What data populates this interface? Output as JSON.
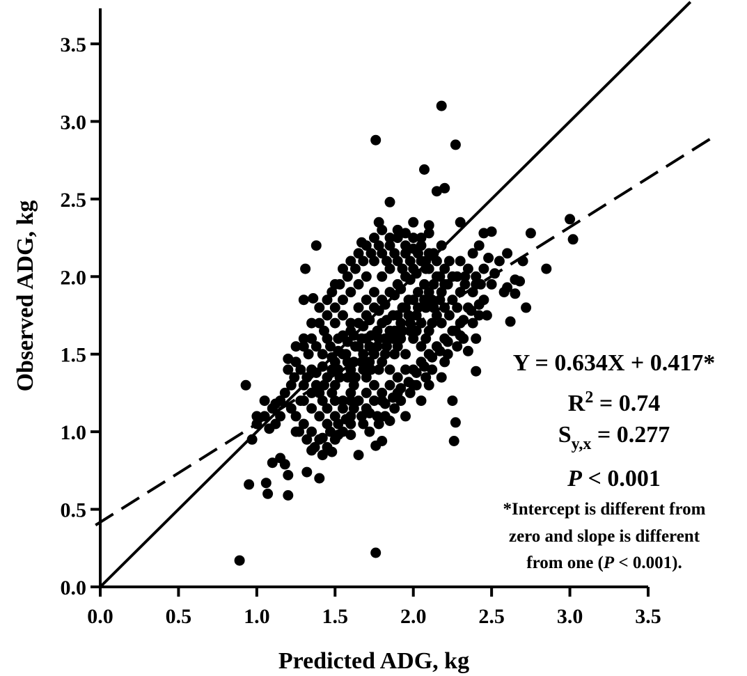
{
  "chart_data": {
    "type": "scatter",
    "xlabel": "Predicted ADG, kg",
    "ylabel": "Observed ADG, kg",
    "xlim": [
      0,
      3.5
    ],
    "ylim": [
      0,
      3.5
    ],
    "x_ticks": [
      "0.0",
      "0.5",
      "1.0",
      "1.5",
      "2.0",
      "2.5",
      "3.0",
      "3.5"
    ],
    "y_ticks": [
      "0.0",
      "0.5",
      "1.0",
      "1.5",
      "2.0",
      "2.5",
      "3.0",
      "3.5"
    ],
    "grid": false,
    "lines": [
      {
        "style": "solid",
        "slope": 1,
        "intercept": 0
      },
      {
        "style": "dashed",
        "slope": 0.634,
        "intercept": 0.417
      }
    ],
    "points": [
      [
        0.89,
        0.17
      ],
      [
        1.76,
        0.22
      ],
      [
        0.95,
        0.66
      ],
      [
        1.07,
        0.6
      ],
      [
        1.2,
        0.59
      ],
      [
        1.06,
        0.67
      ],
      [
        1.32,
        0.74
      ],
      [
        1.4,
        0.7
      ],
      [
        0.93,
        1.3
      ],
      [
        1.0,
        1.1
      ],
      [
        1.05,
        1.2
      ],
      [
        0.97,
        0.95
      ],
      [
        1.1,
        0.8
      ],
      [
        1.15,
        0.83
      ],
      [
        1.2,
        0.72
      ],
      [
        1.18,
        0.79
      ],
      [
        1.08,
        1.02
      ],
      [
        1.12,
        1.18
      ],
      [
        1.2,
        1.47
      ],
      [
        1.24,
        1.35
      ],
      [
        1.3,
        1.85
      ],
      [
        1.31,
        2.05
      ],
      [
        1.38,
        2.2
      ],
      [
        1.36,
        1.86
      ],
      [
        1.25,
        1.0
      ],
      [
        1.35,
        0.88
      ],
      [
        1.42,
        0.96
      ],
      [
        1.48,
        0.87
      ],
      [
        1.52,
        0.98
      ],
      [
        1.6,
        1.05
      ],
      [
        1.65,
        0.85
      ],
      [
        1.76,
        0.91
      ],
      [
        1.8,
        0.94
      ],
      [
        1.85,
        1.07
      ],
      [
        1.95,
        1.1
      ],
      [
        2.05,
        1.2
      ],
      [
        2.1,
        1.3
      ],
      [
        2.2,
        1.45
      ],
      [
        2.25,
        1.2
      ],
      [
        2.27,
        1.06
      ],
      [
        2.26,
        0.94
      ],
      [
        2.4,
        1.39
      ],
      [
        2.4,
        1.6
      ],
      [
        2.35,
        1.52
      ],
      [
        2.3,
        1.62
      ],
      [
        1.76,
        2.88
      ],
      [
        2.18,
        3.1
      ],
      [
        2.27,
        2.85
      ],
      [
        2.07,
        2.69
      ],
      [
        2.15,
        2.55
      ],
      [
        2.2,
        2.57
      ],
      [
        1.85,
        2.48
      ],
      [
        1.67,
        2.22
      ],
      [
        1.78,
        2.35
      ],
      [
        2.0,
        2.35
      ],
      [
        2.1,
        2.28
      ],
      [
        2.1,
        2.33
      ],
      [
        2.3,
        2.35
      ],
      [
        2.45,
        2.28
      ],
      [
        2.5,
        2.29
      ],
      [
        2.55,
        2.1
      ],
      [
        2.6,
        1.93
      ],
      [
        2.65,
        1.89
      ],
      [
        2.7,
        2.1
      ],
      [
        2.72,
        1.8
      ],
      [
        2.75,
        2.28
      ],
      [
        2.85,
        2.05
      ],
      [
        3.0,
        2.37
      ],
      [
        3.02,
        2.24
      ],
      [
        2.6,
        2.15
      ],
      [
        2.62,
        1.71
      ],
      [
        2.47,
        1.75
      ],
      [
        2.52,
        2.02
      ],
      [
        2.65,
        1.98
      ],
      [
        2.68,
        1.97
      ],
      [
        2.58,
        1.9
      ],
      [
        1.5,
        1.45
      ],
      [
        1.55,
        1.5
      ],
      [
        1.6,
        1.4
      ],
      [
        1.65,
        1.55
      ],
      [
        1.7,
        1.6
      ],
      [
        1.75,
        1.5
      ],
      [
        1.8,
        1.7
      ],
      [
        1.85,
        1.65
      ],
      [
        1.9,
        1.75
      ],
      [
        1.95,
        1.8
      ],
      [
        2.0,
        1.85
      ],
      [
        2.05,
        1.7
      ],
      [
        2.1,
        1.9
      ],
      [
        1.45,
        1.35
      ],
      [
        1.4,
        1.25
      ],
      [
        1.5,
        1.3
      ],
      [
        1.55,
        1.2
      ],
      [
        1.6,
        1.25
      ],
      [
        1.7,
        1.35
      ],
      [
        1.75,
        1.3
      ],
      [
        1.8,
        1.45
      ],
      [
        1.85,
        1.4
      ],
      [
        1.9,
        1.55
      ],
      [
        1.95,
        1.5
      ],
      [
        2.0,
        1.6
      ],
      [
        2.05,
        1.55
      ],
      [
        2.1,
        1.65
      ],
      [
        2.15,
        1.75
      ],
      [
        2.2,
        1.8
      ],
      [
        2.25,
        1.85
      ],
      [
        1.6,
        1.7
      ],
      [
        1.65,
        1.8
      ],
      [
        1.7,
        1.85
      ],
      [
        1.75,
        1.9
      ],
      [
        1.8,
        2.0
      ],
      [
        1.85,
        2.05
      ],
      [
        1.9,
        2.1
      ],
      [
        1.95,
        2.15
      ],
      [
        1.45,
        1.6
      ],
      [
        1.5,
        1.7
      ],
      [
        1.55,
        1.75
      ],
      [
        1.42,
        1.5
      ],
      [
        1.35,
        1.4
      ],
      [
        1.3,
        1.3
      ],
      [
        1.28,
        1.2
      ],
      [
        1.35,
        1.15
      ],
      [
        1.4,
        1.1
      ],
      [
        1.45,
        1.05
      ],
      [
        1.5,
        1.1
      ],
      [
        1.55,
        1.15
      ],
      [
        1.6,
        1.1
      ],
      [
        1.65,
        1.2
      ],
      [
        1.7,
        1.25
      ],
      [
        1.75,
        1.2
      ],
      [
        1.8,
        1.25
      ],
      [
        1.85,
        1.3
      ],
      [
        1.9,
        1.35
      ],
      [
        1.95,
        1.4
      ],
      [
        2.0,
        1.4
      ],
      [
        2.05,
        1.45
      ],
      [
        2.1,
        1.5
      ],
      [
        2.15,
        1.55
      ],
      [
        2.2,
        1.6
      ],
      [
        2.25,
        1.65
      ],
      [
        2.3,
        1.7
      ],
      [
        2.35,
        1.8
      ],
      [
        2.3,
        1.9
      ],
      [
        2.25,
        2.0
      ],
      [
        2.2,
        2.05
      ],
      [
        2.15,
        2.1
      ],
      [
        2.1,
        2.15
      ],
      [
        2.05,
        2.2
      ],
      [
        2.0,
        2.25
      ],
      [
        1.95,
        2.2
      ],
      [
        1.9,
        2.25
      ],
      [
        1.85,
        2.2
      ],
      [
        1.8,
        2.15
      ],
      [
        1.75,
        2.1
      ],
      [
        1.7,
        2.0
      ],
      [
        1.65,
        1.95
      ],
      [
        1.6,
        1.9
      ],
      [
        1.55,
        1.85
      ],
      [
        1.5,
        1.8
      ],
      [
        1.45,
        1.75
      ],
      [
        1.4,
        1.7
      ],
      [
        1.35,
        1.6
      ],
      [
        1.3,
        1.55
      ],
      [
        1.25,
        1.45
      ],
      [
        1.22,
        1.3
      ],
      [
        1.18,
        1.25
      ],
      [
        1.15,
        1.1
      ],
      [
        1.12,
        1.05
      ],
      [
        1.25,
        1.1
      ],
      [
        1.3,
        1.05
      ],
      [
        1.35,
        1.0
      ],
      [
        1.4,
        0.95
      ],
      [
        1.45,
        0.9
      ],
      [
        1.5,
        0.95
      ],
      [
        1.55,
        1.0
      ],
      [
        1.6,
        0.98
      ],
      [
        1.68,
        1.05
      ],
      [
        1.72,
        1.0
      ],
      [
        1.78,
        1.05
      ],
      [
        1.82,
        1.1
      ],
      [
        1.88,
        1.15
      ],
      [
        1.92,
        1.2
      ],
      [
        1.98,
        1.25
      ],
      [
        2.02,
        1.3
      ],
      [
        2.08,
        1.35
      ],
      [
        2.12,
        1.4
      ],
      [
        2.18,
        1.35
      ],
      [
        2.22,
        1.5
      ],
      [
        2.28,
        1.55
      ],
      [
        2.32,
        1.6
      ],
      [
        2.38,
        1.7
      ],
      [
        2.42,
        1.75
      ],
      [
        2.45,
        1.85
      ],
      [
        2.4,
        1.95
      ],
      [
        2.35,
        2.05
      ],
      [
        2.3,
        2.1
      ],
      [
        2.38,
        2.15
      ],
      [
        2.42,
        2.2
      ],
      [
        2.45,
        2.05
      ],
      [
        2.5,
        1.95
      ],
      [
        2.48,
        2.12
      ],
      [
        2.4,
        2.0
      ],
      [
        2.33,
        1.95
      ],
      [
        2.28,
        1.8
      ],
      [
        1.62,
        1.62
      ],
      [
        1.68,
        1.68
      ],
      [
        1.72,
        1.72
      ],
      [
        1.78,
        1.78
      ],
      [
        1.82,
        1.82
      ],
      [
        1.88,
        1.88
      ],
      [
        1.92,
        1.92
      ],
      [
        1.98,
        1.98
      ],
      [
        2.02,
        2.02
      ],
      [
        2.08,
        2.05
      ],
      [
        1.58,
        1.58
      ],
      [
        1.52,
        1.52
      ],
      [
        1.48,
        1.48
      ],
      [
        1.42,
        1.42
      ],
      [
        1.38,
        1.38
      ],
      [
        1.32,
        1.35
      ],
      [
        1.62,
        1.45
      ],
      [
        1.68,
        1.5
      ],
      [
        1.72,
        1.55
      ],
      [
        1.78,
        1.6
      ],
      [
        1.82,
        1.6
      ],
      [
        1.88,
        1.65
      ],
      [
        1.92,
        1.7
      ],
      [
        1.98,
        1.7
      ],
      [
        2.02,
        1.75
      ],
      [
        2.08,
        1.8
      ],
      [
        2.12,
        1.85
      ],
      [
        2.18,
        1.9
      ],
      [
        2.22,
        1.95
      ],
      [
        1.58,
        1.35
      ],
      [
        1.52,
        1.4
      ],
      [
        1.48,
        1.25
      ],
      [
        1.42,
        1.2
      ],
      [
        1.38,
        1.3
      ],
      [
        1.62,
        1.3
      ],
      [
        1.68,
        1.4
      ],
      [
        1.72,
        1.45
      ],
      [
        1.78,
        1.4
      ],
      [
        1.82,
        1.5
      ],
      [
        1.88,
        1.5
      ],
      [
        1.92,
        1.6
      ],
      [
        1.98,
        1.65
      ],
      [
        2.02,
        1.65
      ],
      [
        2.08,
        1.6
      ],
      [
        2.12,
        1.7
      ],
      [
        2.18,
        1.7
      ],
      [
        1.55,
        1.62
      ],
      [
        1.6,
        1.65
      ],
      [
        1.65,
        1.7
      ],
      [
        1.7,
        1.75
      ],
      [
        1.75,
        1.8
      ],
      [
        1.8,
        1.85
      ],
      [
        1.85,
        1.9
      ],
      [
        1.9,
        1.95
      ],
      [
        1.95,
        2.0
      ],
      [
        2.0,
        2.05
      ],
      [
        2.05,
        2.1
      ],
      [
        2.1,
        2.05
      ],
      [
        2.15,
        2.0
      ],
      [
        2.2,
        1.95
      ],
      [
        1.47,
        1.55
      ],
      [
        1.52,
        1.6
      ],
      [
        1.57,
        1.5
      ],
      [
        1.63,
        1.55
      ],
      [
        1.67,
        1.45
      ],
      [
        1.73,
        1.62
      ],
      [
        1.77,
        1.65
      ],
      [
        1.83,
        1.72
      ],
      [
        1.87,
        1.75
      ],
      [
        1.93,
        1.8
      ],
      [
        1.97,
        1.85
      ],
      [
        2.03,
        1.9
      ],
      [
        2.07,
        1.95
      ],
      [
        2.13,
        1.8
      ],
      [
        2.17,
        1.85
      ],
      [
        2.23,
        1.75
      ],
      [
        1.43,
        1.3
      ],
      [
        1.48,
        1.4
      ],
      [
        1.53,
        1.35
      ],
      [
        1.58,
        1.45
      ],
      [
        1.63,
        1.35
      ],
      [
        1.67,
        1.6
      ],
      [
        1.73,
        1.4
      ],
      [
        1.77,
        1.55
      ],
      [
        1.83,
        1.55
      ],
      [
        1.87,
        1.6
      ],
      [
        1.93,
        1.65
      ],
      [
        1.97,
        1.75
      ],
      [
        2.03,
        1.8
      ],
      [
        2.07,
        1.85
      ],
      [
        2.13,
        1.95
      ],
      [
        2.17,
        2.0
      ],
      [
        1.6,
        1.2
      ],
      [
        1.7,
        1.15
      ],
      [
        1.8,
        1.2
      ],
      [
        1.9,
        1.25
      ],
      [
        2.0,
        1.3
      ],
      [
        1.5,
        1.2
      ],
      [
        1.45,
        1.15
      ],
      [
        1.35,
        1.25
      ],
      [
        1.3,
        1.2
      ],
      [
        1.28,
        1.4
      ],
      [
        1.33,
        1.5
      ],
      [
        1.38,
        1.55
      ],
      [
        1.43,
        1.65
      ],
      [
        1.48,
        1.9
      ],
      [
        1.53,
        1.95
      ],
      [
        1.58,
        2.0
      ],
      [
        1.63,
        2.05
      ],
      [
        1.68,
        2.1
      ],
      [
        1.73,
        2.15
      ],
      [
        1.78,
        2.2
      ],
      [
        1.83,
        2.1
      ],
      [
        1.88,
        2.15
      ],
      [
        1.93,
        2.05
      ],
      [
        1.98,
        2.1
      ],
      [
        2.03,
        2.15
      ],
      [
        2.08,
        2.1
      ],
      [
        2.13,
        2.15
      ],
      [
        2.18,
        2.2
      ],
      [
        2.23,
        2.1
      ],
      [
        2.28,
        2.0
      ],
      [
        2.33,
        2.0
      ],
      [
        2.38,
        1.9
      ],
      [
        2.43,
        1.95
      ],
      [
        1.22,
        1.15
      ],
      [
        1.27,
        1.0
      ],
      [
        1.32,
        0.95
      ],
      [
        1.37,
        0.9
      ],
      [
        1.42,
        0.85
      ],
      [
        1.47,
        1.0
      ],
      [
        1.52,
        1.05
      ],
      [
        1.57,
        1.08
      ],
      [
        1.62,
        1.15
      ],
      [
        1.67,
        1.1
      ],
      [
        1.72,
        1.12
      ],
      [
        1.77,
        1.1
      ],
      [
        1.82,
        1.18
      ],
      [
        1.87,
        1.22
      ],
      [
        1.92,
        1.28
      ],
      [
        1.97,
        1.32
      ],
      [
        2.02,
        1.38
      ],
      [
        2.07,
        1.42
      ],
      [
        2.12,
        1.48
      ],
      [
        2.17,
        1.52
      ],
      [
        2.22,
        1.58
      ],
      [
        2.27,
        1.65
      ],
      [
        2.32,
        1.72
      ],
      [
        2.37,
        1.78
      ],
      [
        2.42,
        1.82
      ],
      [
        1.15,
        1.2
      ],
      [
        1.1,
        1.15
      ],
      [
        1.05,
        1.1
      ],
      [
        1.0,
        1.05
      ],
      [
        1.2,
        1.4
      ],
      [
        1.25,
        1.55
      ],
      [
        1.3,
        1.6
      ],
      [
        1.35,
        1.7
      ],
      [
        1.4,
        1.8
      ],
      [
        1.45,
        1.85
      ],
      [
        1.5,
        1.95
      ],
      [
        1.55,
        2.05
      ],
      [
        1.6,
        2.1
      ],
      [
        1.65,
        2.15
      ],
      [
        1.7,
        2.2
      ],
      [
        1.75,
        2.25
      ],
      [
        1.8,
        2.3
      ],
      [
        1.85,
        2.25
      ],
      [
        1.9,
        2.3
      ],
      [
        1.95,
        2.28
      ],
      [
        2.0,
        2.18
      ],
      [
        2.05,
        2.25
      ]
    ],
    "annotations": {
      "equation": "Y = 0.634X + 0.417*",
      "r2_base": "R",
      "r2_sup": "2",
      "r2_value": " = 0.74",
      "syx_base": "S",
      "syx_sub": "y,x",
      "syx_value": " = 0.277",
      "p_italic": "P",
      "p_value": " < 0.001",
      "note_line1": "*Intercept is different from",
      "note_line2": "zero and slope is different",
      "note_line3_pre": "from one (",
      "note_line3_italic": "P",
      "note_line3_post": " < 0.001)."
    }
  }
}
